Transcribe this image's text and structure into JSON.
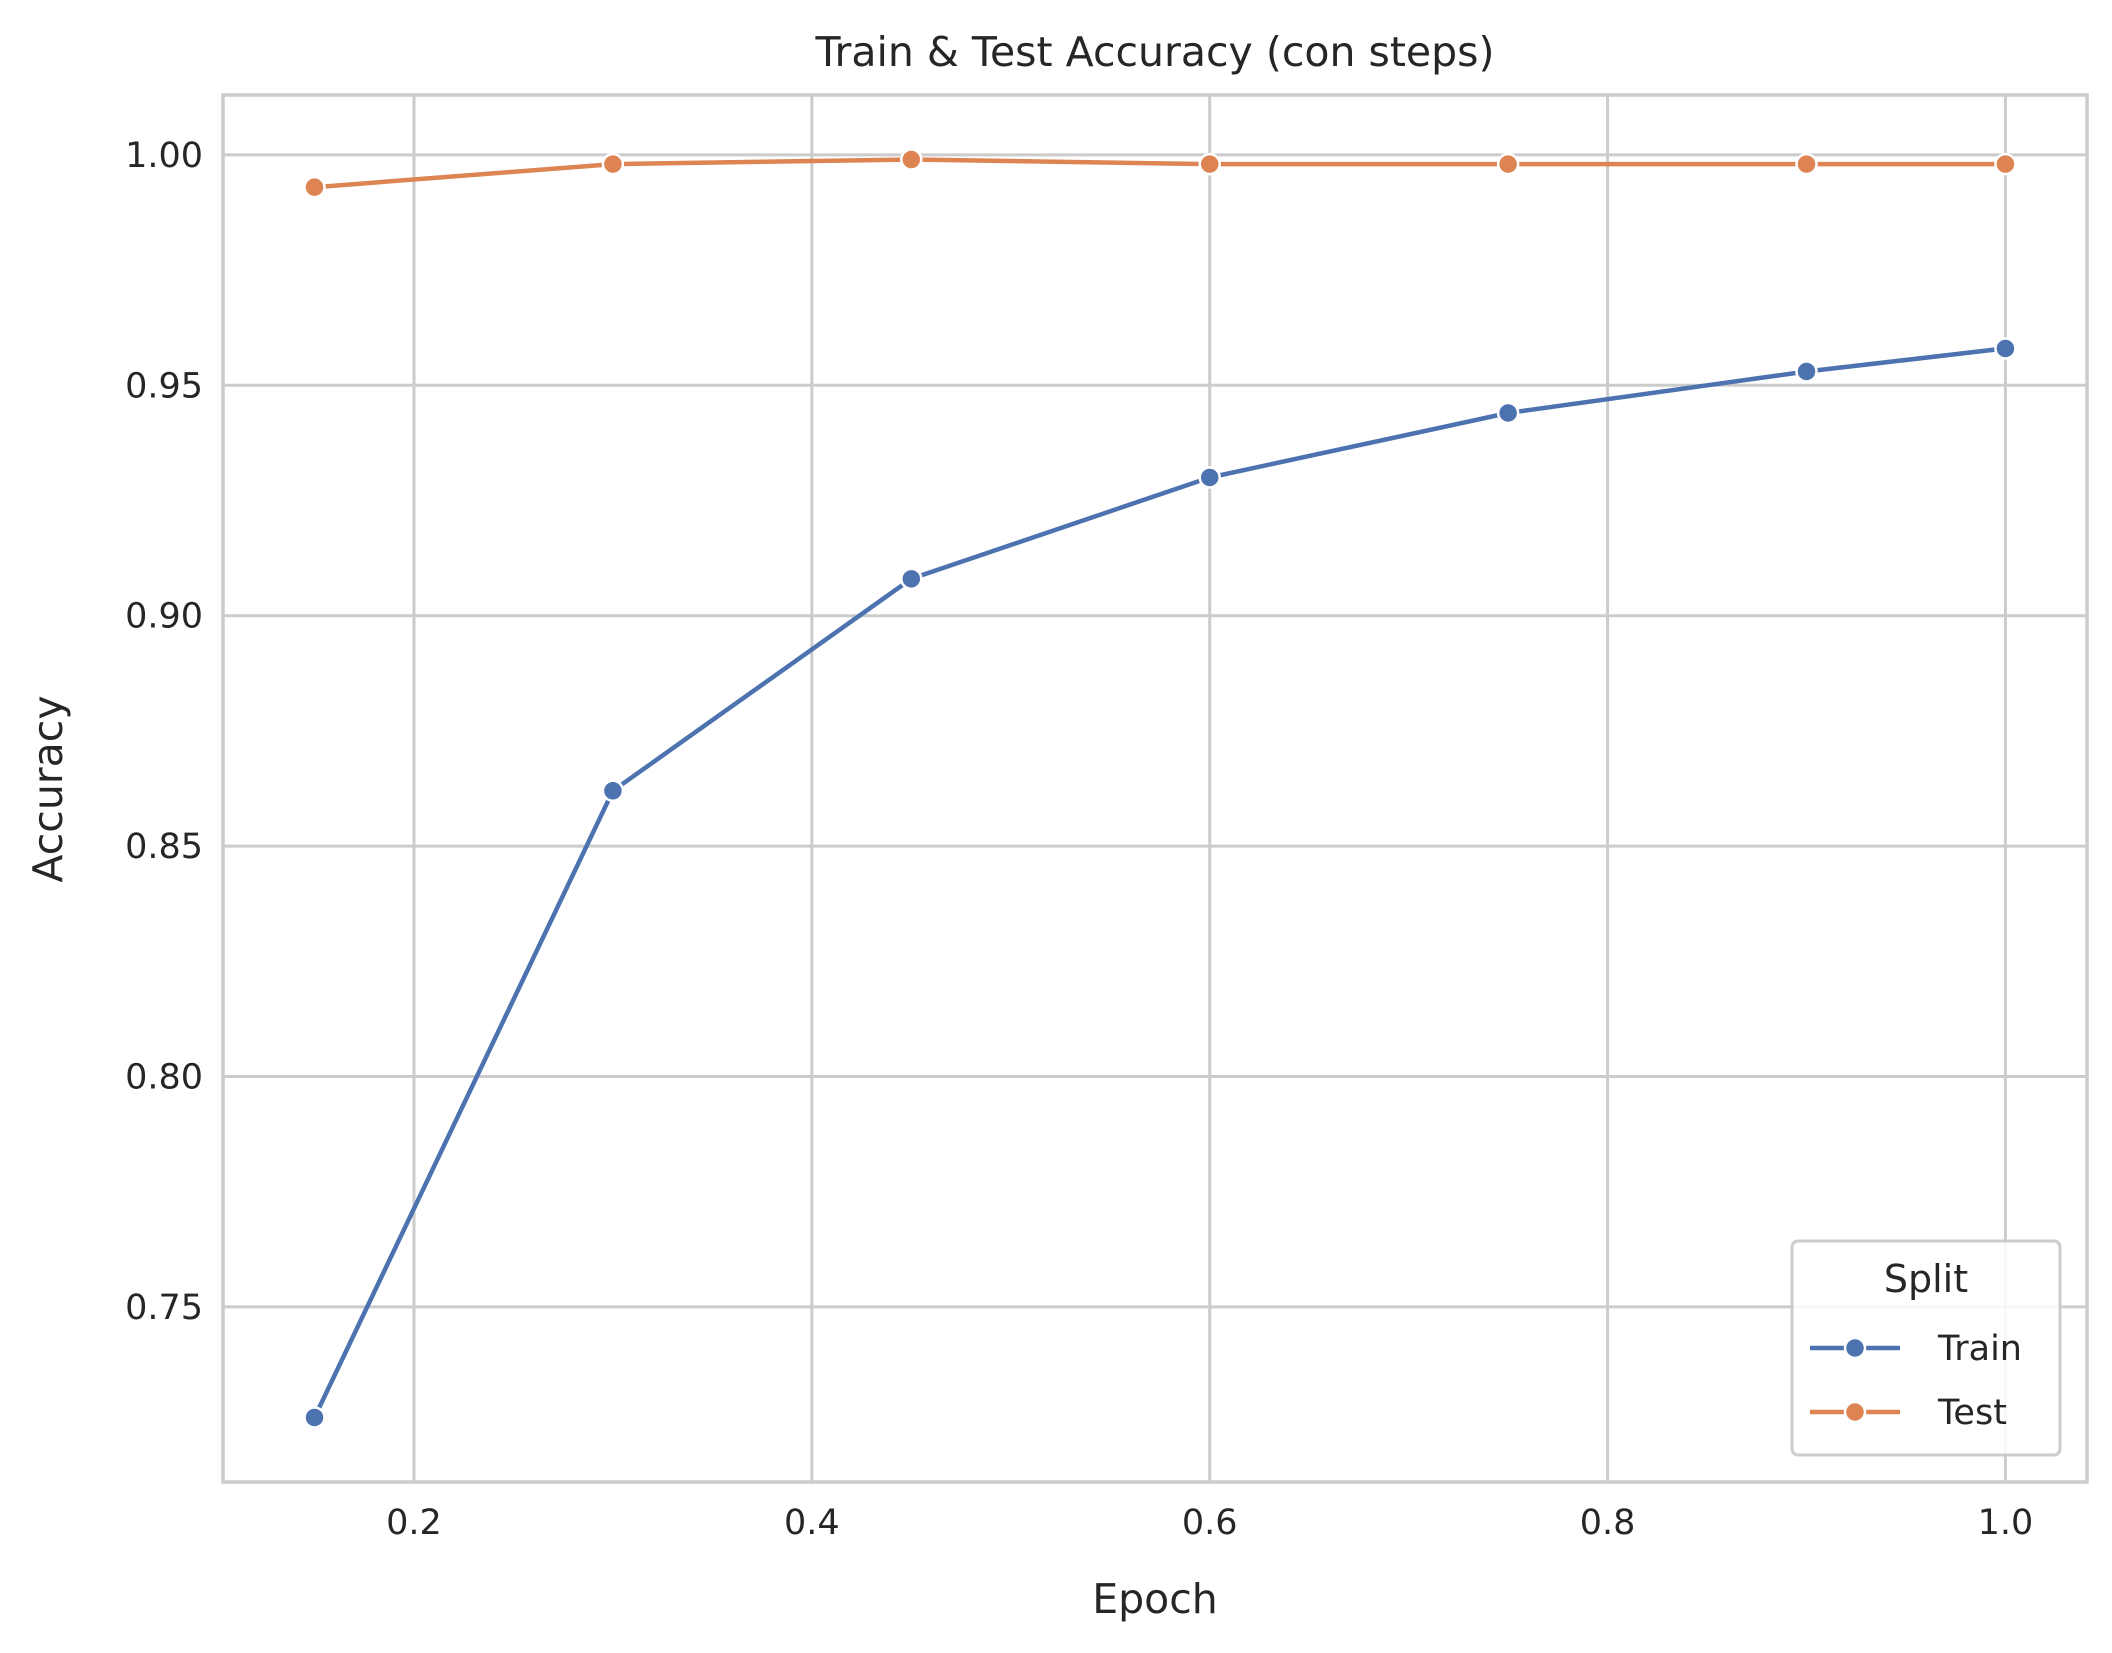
{
  "chart_data": {
    "type": "line",
    "title": "Train & Test Accuracy (con steps)",
    "xlabel": "Epoch",
    "ylabel": "Accuracy",
    "xlim": [
      0.104,
      1.041
    ],
    "ylim": [
      0.712,
      1.013
    ],
    "xticks": [
      0.2,
      0.4,
      0.6,
      0.8,
      1.0
    ],
    "xtick_labels": [
      "0.2",
      "0.4",
      "0.6",
      "0.8",
      "1.0"
    ],
    "yticks": [
      0.75,
      0.8,
      0.85,
      0.9,
      0.95,
      1.0
    ],
    "ytick_labels": [
      "0.75",
      "0.80",
      "0.85",
      "0.90",
      "0.95",
      "1.00"
    ],
    "grid": true,
    "legend": {
      "title": "Split",
      "position": "bottom-right"
    },
    "x": [
      0.15,
      0.3,
      0.45,
      0.6,
      0.75,
      0.9,
      1.0
    ],
    "series": [
      {
        "name": "Train",
        "color": "#4c72b0",
        "values": [
          0.726,
          0.862,
          0.908,
          0.93,
          0.944,
          0.953,
          0.958
        ]
      },
      {
        "name": "Test",
        "color": "#dd8452",
        "values": [
          0.993,
          0.998,
          0.999,
          0.998,
          0.998,
          0.998,
          0.998
        ]
      }
    ]
  }
}
